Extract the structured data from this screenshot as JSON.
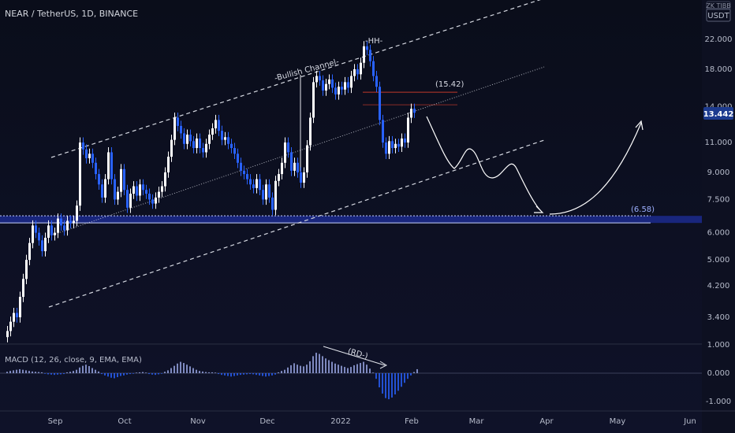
{
  "header": {
    "symbol": "NEAR / TetherUS, 1D, BINANCE",
    "currency_top": "ZK TIBB",
    "currency": "USDT"
  },
  "annotations": {
    "channel": "-Bullish Channel-",
    "hh": "-HH-",
    "target_high": "(15.42)",
    "support": "(6.58)",
    "divergence": "(RD-)"
  },
  "price_badge": "13.442",
  "indicator_label": "MACD (12, 26, close, 9, EMA, EMA)",
  "colors": {
    "up": "#ffffff",
    "down": "#2962ff",
    "badge": "#1d3b8f",
    "support_band": "#2439c8",
    "resistance": "#c0392b",
    "channel": "#d6d9e2"
  },
  "chart_data": {
    "type": "candlestick",
    "scale": "log",
    "price_axis": {
      "ticks": [
        {
          "label": "22.000",
          "value": 22
        },
        {
          "label": "18.000",
          "value": 18
        },
        {
          "label": "14.000",
          "value": 14
        },
        {
          "label": "11.000",
          "value": 11
        },
        {
          "label": "9.000",
          "value": 9
        },
        {
          "label": "7.500",
          "value": 7.5
        },
        {
          "label": "6.000",
          "value": 6
        },
        {
          "label": "5.000",
          "value": 5
        },
        {
          "label": "4.200",
          "value": 4.2
        },
        {
          "label": "3.400",
          "value": 3.4
        }
      ]
    },
    "macd_axis": {
      "ticks": [
        {
          "label": "1.000",
          "value": 1
        },
        {
          "label": "0.000",
          "value": 0
        },
        {
          "label": "-1.000",
          "value": -1
        }
      ]
    },
    "time_axis": [
      "Sep",
      "Oct",
      "Nov",
      "Dec",
      "2022",
      "Feb",
      "Mar",
      "Apr",
      "May",
      "Jun"
    ],
    "closes": [
      3.1,
      3.3,
      3.5,
      3.4,
      3.9,
      4.4,
      5.0,
      5.6,
      6.3,
      6.0,
      5.7,
      5.3,
      5.8,
      6.3,
      5.9,
      6.0,
      6.6,
      6.3,
      6.1,
      6.5,
      6.4,
      6.5,
      7.2,
      11.0,
      10.5,
      9.9,
      10.2,
      9.6,
      8.9,
      8.3,
      7.6,
      8.6,
      10.3,
      8.6,
      7.5,
      7.9,
      9.2,
      8.0,
      7.1,
      7.8,
      8.2,
      7.7,
      8.3,
      8.0,
      7.8,
      7.5,
      7.3,
      7.6,
      7.9,
      8.2,
      9.0,
      10.0,
      11.2,
      13.0,
      12.3,
      11.7,
      10.9,
      11.6,
      11.1,
      10.6,
      11.3,
      10.6,
      10.3,
      10.9,
      11.6,
      12.1,
      12.8,
      11.9,
      11.2,
      11.4,
      10.9,
      10.6,
      10.2,
      9.6,
      9.1,
      8.9,
      8.6,
      8.3,
      8.1,
      8.6,
      8.0,
      7.5,
      8.3,
      7.6,
      7.0,
      8.5,
      8.9,
      9.6,
      11.0,
      10.3,
      9.1,
      9.6,
      9.0,
      8.4,
      9.0,
      10.8,
      13.0,
      16.5,
      17.2,
      16.7,
      15.6,
      16.3,
      16.8,
      15.9,
      15.2,
      16.0,
      15.7,
      16.5,
      15.9,
      17.2,
      18.0,
      17.4,
      18.8,
      21.0,
      20.5,
      19.0,
      17.2,
      16.0,
      12.8,
      11.0,
      10.2,
      11.1,
      10.6,
      10.9,
      10.7,
      11.3,
      11.0,
      13.0,
      13.8,
      13.44
    ],
    "macd_hist": [
      0.05,
      0.08,
      0.1,
      0.12,
      0.14,
      0.12,
      0.1,
      0.08,
      0.06,
      0.05,
      0.04,
      0.03,
      -0.02,
      -0.04,
      -0.05,
      -0.06,
      -0.05,
      -0.04,
      -0.03,
      0.03,
      0.05,
      0.08,
      0.12,
      0.2,
      0.26,
      0.3,
      0.25,
      0.18,
      0.12,
      0.06,
      -0.03,
      -0.08,
      -0.12,
      -0.16,
      -0.18,
      -0.14,
      -0.1,
      -0.08,
      -0.05,
      -0.03,
      -0.02,
      0.02,
      0.03,
      0.04,
      0.02,
      -0.03,
      -0.05,
      -0.06,
      -0.04,
      -0.02,
      0.05,
      0.1,
      0.18,
      0.26,
      0.34,
      0.4,
      0.36,
      0.3,
      0.24,
      0.18,
      0.12,
      0.08,
      0.06,
      0.04,
      0.03,
      0.03,
      0.02,
      -0.03,
      -0.06,
      -0.08,
      -0.1,
      -0.12,
      -0.1,
      -0.08,
      -0.06,
      -0.05,
      -0.04,
      -0.03,
      -0.04,
      -0.06,
      -0.08,
      -0.1,
      -0.12,
      -0.1,
      -0.08,
      -0.05,
      0.03,
      0.08,
      0.12,
      0.2,
      0.28,
      0.35,
      0.3,
      0.26,
      0.24,
      0.3,
      0.42,
      0.6,
      0.72,
      0.68,
      0.6,
      0.52,
      0.46,
      0.4,
      0.34,
      0.3,
      0.26,
      0.22,
      0.18,
      0.22,
      0.28,
      0.32,
      0.36,
      0.4,
      0.3,
      0.16,
      0.02,
      -0.2,
      -0.5,
      -0.72,
      -0.88,
      -0.92,
      -0.86,
      -0.75,
      -0.62,
      -0.48,
      -0.34,
      -0.2,
      -0.08,
      0.04,
      0.14
    ],
    "levels": {
      "resistance": 15.42,
      "support": 6.58
    }
  }
}
